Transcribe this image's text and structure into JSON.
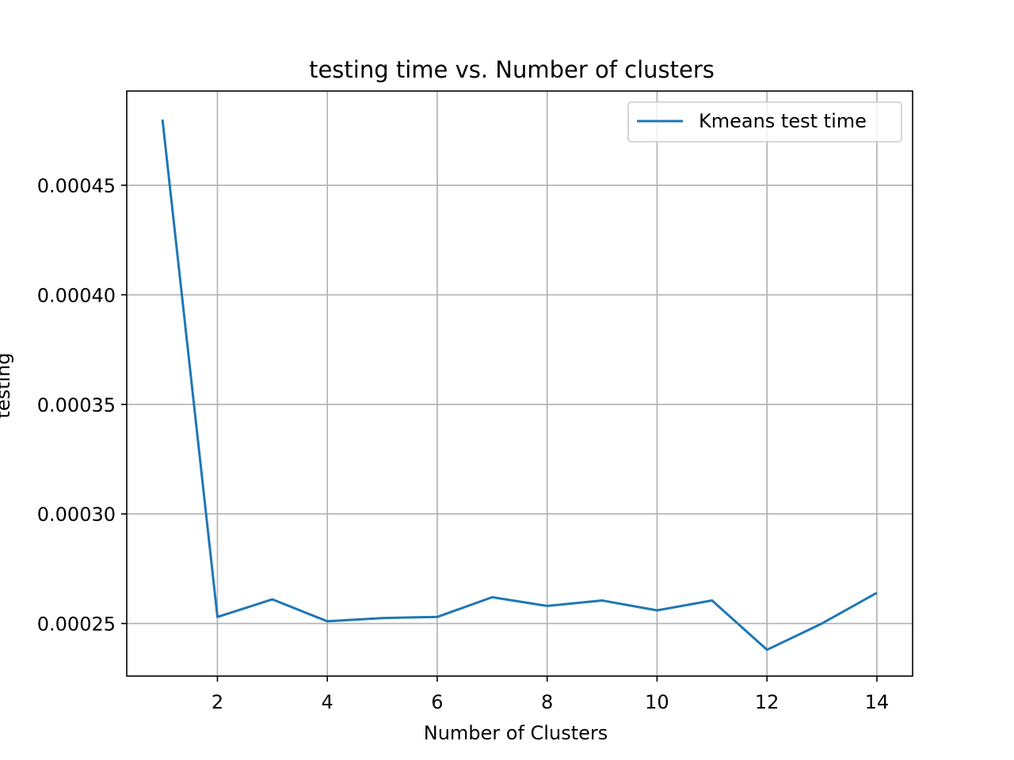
{
  "chart_data": {
    "type": "line",
    "title": "testing time  vs. Number of clusters",
    "xlabel": "Number of Clusters",
    "ylabel": "testing",
    "xlim": [
      0.35,
      14.65
    ],
    "ylim": [
      0.000226,
      0.000493
    ],
    "xticks": [
      2,
      4,
      6,
      8,
      10,
      12,
      14
    ],
    "xtick_labels": [
      "2",
      "4",
      "6",
      "8",
      "10",
      "12",
      "14"
    ],
    "yticks": [
      0.00025,
      0.0003,
      0.00035,
      0.0004,
      0.00045
    ],
    "ytick_labels": [
      "0.00025",
      "0.00030",
      "0.00035",
      "0.00040",
      "0.00045"
    ],
    "grid": true,
    "legend_position": "top-right",
    "series": [
      {
        "name": "Kmeans test time",
        "color": "#1f77b4",
        "x": [
          1,
          2,
          3,
          4,
          5,
          6,
          7,
          8,
          9,
          10,
          11,
          12,
          13,
          14
        ],
        "y": [
          0.00048,
          0.000253,
          0.000261,
          0.000251,
          0.0002525,
          0.000253,
          0.000262,
          0.000258,
          0.0002605,
          0.000256,
          0.0002605,
          0.000238,
          0.00025,
          0.000264
        ]
      }
    ]
  }
}
